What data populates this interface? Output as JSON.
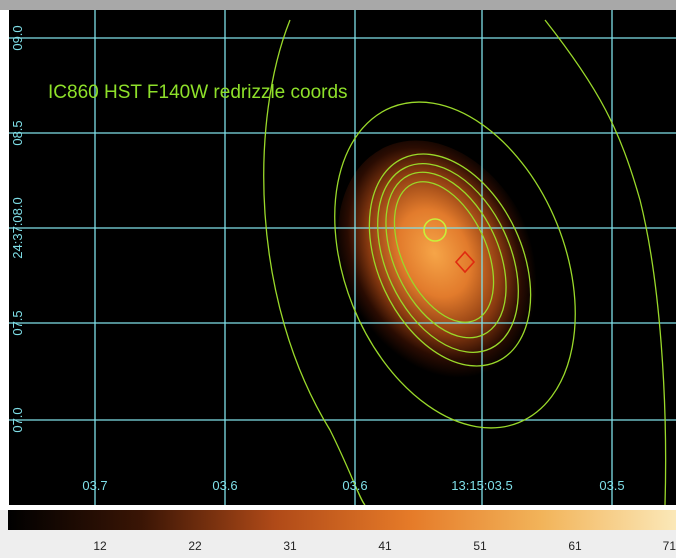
{
  "image": {
    "title": "IC860 HST F140W redrizzle coords",
    "x_labels": [
      "03.7",
      "03.6",
      "03.6",
      "13:15:03.5",
      "03.5"
    ],
    "y_labels": [
      "09.0",
      "08.5",
      "24:37:08.0",
      "07.5",
      "07.0"
    ]
  },
  "colorbar": {
    "labels": [
      "12",
      "22",
      "31",
      "41",
      "51",
      "61",
      "71"
    ]
  }
}
